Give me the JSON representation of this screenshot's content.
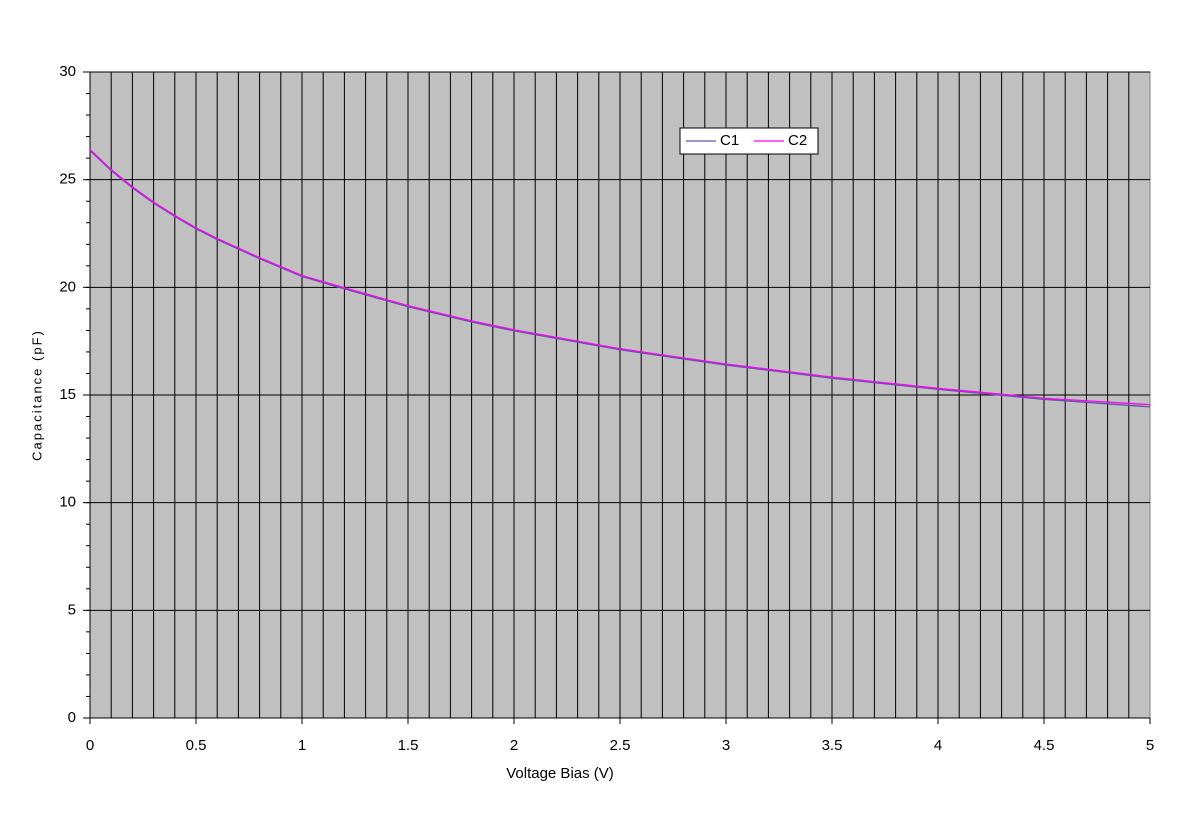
{
  "chart_data": {
    "type": "line",
    "x_label": "Voltage Bias (V)",
    "y_label": "Capacitance (pF)",
    "x": [
      0,
      0.1,
      0.2,
      0.3,
      0.4,
      0.5,
      0.6,
      0.8,
      1,
      1.2,
      1.5,
      1.8,
      2,
      2.5,
      3,
      3.5,
      4,
      4.5,
      5
    ],
    "series": [
      {
        "name": "C1",
        "color": "#5a5a9a",
        "values": [
          26.35,
          25.42,
          24.62,
          23.91,
          23.29,
          22.72,
          22.22,
          21.33,
          20.5,
          19.93,
          19.1,
          18.39,
          17.98,
          17.1,
          16.39,
          15.78,
          15.26,
          14.8,
          14.45
        ]
      },
      {
        "name": "C2",
        "color": "#ff00ff",
        "values": [
          26.4,
          25.47,
          24.67,
          23.96,
          23.34,
          22.77,
          22.27,
          21.38,
          20.55,
          19.98,
          19.15,
          18.44,
          18.03,
          17.15,
          16.44,
          15.83,
          15.31,
          14.85,
          14.55
        ]
      }
    ],
    "xlim": [
      0,
      5
    ],
    "ylim": [
      0,
      30
    ],
    "xticks": [
      0,
      0.5,
      1,
      1.5,
      2,
      2.5,
      3,
      3.5,
      4,
      4.5,
      5
    ],
    "yticks": [
      0,
      5,
      10,
      15,
      20,
      25,
      30
    ],
    "xgrid_step": 0.1,
    "yminor_step": 1,
    "grid": true,
    "plot_background": "#c0c0c0",
    "legend": "top-right"
  }
}
